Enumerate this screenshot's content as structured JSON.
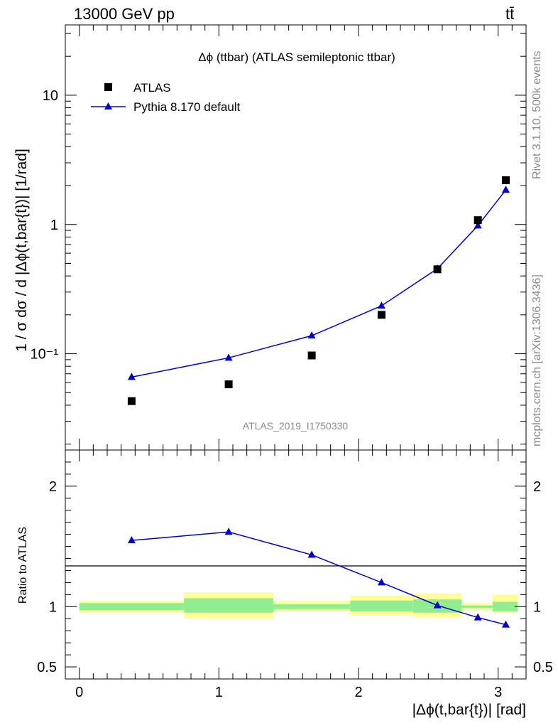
{
  "header": {
    "energy_label": "13000 GeV pp",
    "process_label": "tt̄",
    "side_label_top": "Rivet 3.1.10,  500k events",
    "side_label_bottom": "mcplots.cern.ch [arXiv:1306.3436]",
    "watermark": "ATLAS_2019_I1750330"
  },
  "chart_data": [
    {
      "type": "scatter",
      "panel": "main",
      "title": "Δϕ (ttbar) (ATLAS semileptonic ttbar)",
      "xlabel": "|Δϕ(t,bar{t})| [rad]",
      "ylabel": "1 / σ dσ / d |Δϕ(t,bar{t})| [1/rad]",
      "xlim": [
        -0.1,
        3.2
      ],
      "ylim": [
        0.018,
        35
      ],
      "y_scale": "log",
      "y_ticks": [
        0.1,
        1,
        10
      ],
      "y_tick_labels": [
        "10⁻¹",
        "1",
        "10"
      ],
      "legend_position": "top-left",
      "series": [
        {
          "name": "ATLAS",
          "style": "square-markers",
          "color": "#000000",
          "x": [
            0.375,
            1.07,
            1.665,
            2.165,
            2.565,
            2.855,
            3.055
          ],
          "y": [
            0.043,
            0.058,
            0.097,
            0.2,
            0.45,
            1.08,
            2.2
          ]
        },
        {
          "name": "Pythia 8.170 default",
          "style": "line-triangle-markers",
          "color": "#0000cc",
          "x": [
            0.375,
            1.07,
            1.665,
            2.165,
            2.565,
            2.855,
            3.055
          ],
          "y": [
            0.066,
            0.093,
            0.138,
            0.235,
            0.455,
            0.98,
            1.85
          ]
        }
      ]
    },
    {
      "type": "line",
      "panel": "ratio",
      "xlabel": "|Δϕ(t,bar{t})| [rad]",
      "ylabel": "Ratio to ATLAS",
      "xlim": [
        -0.1,
        3.2
      ],
      "ylim": [
        0.4,
        2.3
      ],
      "y_ticks": [
        0.5,
        1,
        2
      ],
      "y_tick_labels": [
        "0.5",
        "1",
        "2"
      ],
      "x_ticks": [
        0,
        1,
        2,
        3
      ],
      "x_tick_labels": [
        "0",
        "1",
        "2",
        "3"
      ],
      "uncertainty_bands": [
        {
          "x0": 0.0,
          "x1": 0.75,
          "inner": [
            0.97,
            1.03
          ],
          "outer": [
            0.95,
            1.05
          ]
        },
        {
          "x0": 0.75,
          "x1": 1.39,
          "inner": [
            0.95,
            1.07
          ],
          "outer": [
            0.9,
            1.12
          ]
        },
        {
          "x0": 1.39,
          "x1": 1.94,
          "inner": [
            0.98,
            1.02
          ],
          "outer": [
            0.96,
            1.05
          ]
        },
        {
          "x0": 1.94,
          "x1": 2.39,
          "inner": [
            0.96,
            1.05
          ],
          "outer": [
            0.93,
            1.09
          ]
        },
        {
          "x0": 2.39,
          "x1": 2.74,
          "inner": [
            0.95,
            1.06
          ],
          "outer": [
            0.91,
            1.11
          ]
        },
        {
          "x0": 2.74,
          "x1": 2.96,
          "inner": [
            0.99,
            1.01
          ],
          "outer": [
            0.97,
            1.03
          ]
        },
        {
          "x0": 2.96,
          "x1": 3.14,
          "inner": [
            0.96,
            1.04
          ],
          "outer": [
            0.95,
            1.1
          ]
        }
      ],
      "band_colors": {
        "inner": "#90ee90",
        "outer": "#ffff99"
      },
      "series": [
        {
          "name": "Pythia 8.170 default",
          "color": "#0000cc",
          "x": [
            0.375,
            1.07,
            1.665,
            2.165,
            2.565,
            2.855,
            3.055
          ],
          "y": [
            1.55,
            1.62,
            1.43,
            1.2,
            1.01,
            0.91,
            0.85
          ]
        }
      ]
    }
  ]
}
